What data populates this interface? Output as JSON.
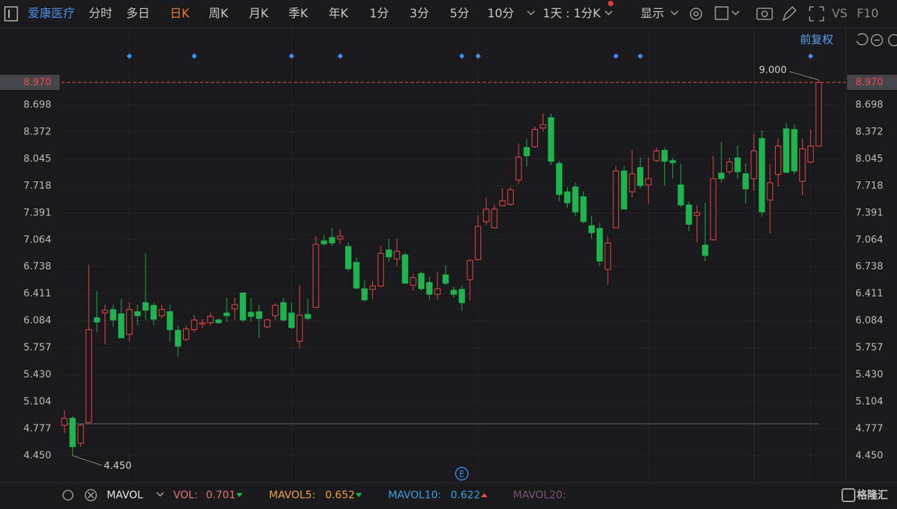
{
  "toolbar": {
    "stock_name": "爱康医疗",
    "tabs": [
      "分时",
      "多日",
      "日K",
      "周K",
      "月K",
      "季K",
      "年K",
      "1分",
      "3分",
      "5分",
      "10分"
    ],
    "active_tab": 2,
    "period": "1天 : 1分K",
    "display": "显示",
    "vs": "VS",
    "f10": "F10",
    "adjust": "前复权"
  },
  "indicator_bar": {
    "name": "MAVOL",
    "vol_label": "VOL:",
    "vol_value": 0.701,
    "mavol5_label": "MAVOL5:",
    "mavol5_value": 0.652,
    "mavol10_label": "MAVOL10:",
    "mavol10_value": 0.622,
    "mavol20_label": "MAVOL20:",
    "brand": "格隆汇"
  },
  "chart_data": {
    "type": "candlestick",
    "up_color": "#f0494a",
    "down_color": "#1fb450",
    "ylim": [
      4.123,
      9.632
    ],
    "yticks": [
      {
        "value": 4.45,
        "label": "4.450"
      },
      4.777,
      5.104,
      {
        "value": 5.43,
        "label": "5.430"
      },
      5.757,
      6.084,
      6.411,
      6.738,
      7.064,
      7.391,
      7.718,
      8.045,
      8.372,
      8.698
    ],
    "grid": true,
    "last_price": {
      "value": 8.97,
      "label": "8.970"
    },
    "max_annotation": {
      "value": 9.0,
      "label": "9.000"
    },
    "min_annotation": {
      "value": 4.45,
      "label": "4.450"
    },
    "reference_level": 4.836,
    "month_boundaries": [
      8,
      28,
      51,
      72,
      92
    ],
    "event_markers": [
      8,
      16,
      28,
      34,
      49,
      51,
      68,
      71,
      92
    ],
    "e_marker": {
      "index": 49,
      "label": "E"
    },
    "open": [
      4.819,
      4.903,
      4.601,
      4.853,
      6.119,
      6.178,
      6.219,
      6.169,
      5.918,
      6.194,
      6.303,
      6.27,
      6.144,
      6.194,
      5.968,
      5.859,
      5.976,
      6.043,
      6.06,
      6.094,
      6.178,
      6.228,
      6.421,
      6.186,
      6.194,
      6.01,
      6.144,
      6.303,
      6.178,
      5.834,
      6.161,
      6.245,
      7.05,
      7.092,
      7.075,
      6.983,
      6.79,
      6.471,
      6.463,
      6.505,
      6.941,
      6.832,
      6.882,
      6.513,
      6.656,
      6.547,
      6.404,
      6.639,
      6.454,
      6.463,
      6.58,
      6.823,
      7.285,
      7.209,
      7.477,
      7.494,
      7.788,
      8.182,
      8.19,
      8.417,
      8.543,
      7.989,
      7.645,
      7.704,
      7.586,
      7.234,
      7.201,
      6.706,
      7.209,
      7.897,
      7.645,
      7.939,
      7.729,
      8.022,
      8.148,
      8.023,
      7.729,
      7.486,
      7.36,
      7.0,
      7.066,
      7.872,
      7.888,
      8.056,
      7.863,
      7.804,
      8.291,
      7.545,
      7.855,
      8.408,
      8.4,
      7.771,
      8.006,
      8.199
    ],
    "close": [
      4.903,
      4.559,
      4.819,
      5.976,
      6.068,
      6.211,
      6.094,
      5.876,
      6.219,
      6.144,
      6.211,
      6.102,
      6.219,
      5.976,
      5.775,
      5.985,
      6.094,
      6.06,
      6.136,
      6.06,
      6.144,
      6.278,
      6.094,
      6.136,
      6.111,
      6.094,
      6.27,
      6.094,
      6.001,
      6.152,
      6.111,
      7.008,
      7.016,
      7.025,
      7.108,
      6.714,
      6.479,
      6.337,
      6.505,
      6.899,
      6.857,
      6.924,
      6.538,
      6.605,
      6.471,
      6.404,
      6.471,
      6.538,
      6.404,
      6.303,
      6.815,
      7.226,
      7.436,
      7.436,
      7.536,
      7.67,
      8.064,
      8.081,
      8.4,
      8.459,
      8.014,
      7.612,
      7.511,
      7.402,
      7.285,
      7.15,
      6.806,
      7.025,
      7.897,
      7.436,
      7.863,
      7.721,
      7.804,
      8.14,
      8.014,
      7.997,
      7.486,
      7.251,
      7.394,
      6.874,
      7.804,
      7.804,
      8.006,
      7.888,
      7.679,
      8.14,
      7.402,
      7.754,
      8.199,
      7.88,
      7.897,
      8.165,
      8.199,
      8.97
    ],
    "high": [
      5.003,
      4.928,
      4.836,
      6.765,
      6.446,
      6.278,
      6.278,
      6.345,
      6.303,
      6.278,
      6.899,
      6.303,
      6.278,
      6.278,
      6.027,
      6.027,
      6.152,
      6.102,
      6.178,
      6.111,
      6.362,
      6.362,
      6.421,
      6.362,
      6.278,
      6.111,
      6.295,
      6.362,
      6.303,
      6.513,
      6.345,
      7.108,
      7.125,
      7.209,
      7.192,
      7.033,
      6.849,
      6.572,
      6.563,
      6.991,
      7.075,
      7.075,
      6.907,
      6.656,
      6.681,
      6.614,
      6.681,
      6.757,
      6.496,
      6.513,
      6.823,
      7.36,
      7.578,
      7.486,
      7.687,
      7.704,
      8.232,
      8.291,
      8.442,
      8.593,
      8.593,
      8.023,
      7.704,
      7.754,
      7.654,
      7.352,
      7.268,
      7.108,
      7.955,
      7.955,
      8.148,
      8.056,
      8.056,
      8.182,
      8.182,
      8.056,
      7.981,
      7.528,
      7.478,
      7.511,
      8.081,
      8.249,
      8.056,
      8.207,
      7.989,
      8.341,
      8.392,
      7.981,
      8.291,
      8.475,
      8.459,
      8.291,
      8.4,
      9.0
    ],
    "low": [
      4.727,
      4.45,
      4.559,
      4.836,
      5.943,
      5.8,
      6.01,
      5.876,
      5.834,
      6.027,
      6.094,
      6.027,
      6.111,
      5.834,
      5.649,
      5.834,
      5.943,
      5.993,
      6.027,
      6.052,
      6.068,
      6.094,
      6.068,
      6.068,
      5.876,
      5.993,
      6.094,
      6.068,
      5.985,
      5.75,
      6.094,
      6.245,
      6.991,
      6.991,
      7.016,
      6.681,
      6.463,
      6.312,
      6.345,
      6.488,
      6.798,
      6.74,
      6.53,
      6.446,
      6.446,
      6.337,
      6.337,
      6.513,
      6.362,
      6.203,
      6.329,
      6.815,
      7.243,
      7.201,
      7.469,
      7.477,
      7.737,
      7.955,
      8.174,
      8.375,
      7.972,
      7.536,
      7.452,
      7.352,
      7.26,
      7.075,
      6.748,
      6.521,
      7.201,
      7.436,
      7.578,
      7.687,
      7.503,
      8.006,
      7.721,
      7.804,
      7.461,
      7.167,
      7.033,
      6.806,
      7.05,
      7.754,
      7.855,
      7.804,
      7.503,
      7.662,
      7.343,
      7.142,
      7.704,
      7.872,
      7.855,
      7.603,
      7.989,
      8.191
    ]
  }
}
